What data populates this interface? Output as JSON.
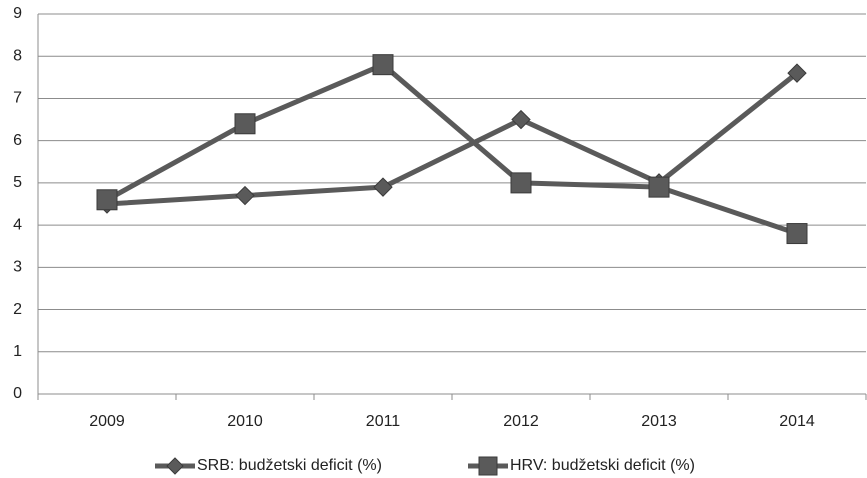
{
  "chart_data": {
    "type": "line",
    "categories": [
      "2009",
      "2010",
      "2011",
      "2012",
      "2013",
      "2014"
    ],
    "series": [
      {
        "name": "SRB: budžetski deficit (%)",
        "color": "#5a5a5a",
        "marker": "diamond",
        "values": [
          4.5,
          4.7,
          4.9,
          6.5,
          5.0,
          7.6
        ]
      },
      {
        "name": "HRV: budžetski deficit (%)",
        "color": "#5a5a5a",
        "marker": "square",
        "values": [
          4.6,
          6.4,
          7.8,
          5.0,
          4.9,
          3.8
        ]
      }
    ],
    "ylim": [
      0,
      9
    ],
    "yticks": [
      0,
      1,
      2,
      3,
      4,
      5,
      6,
      7,
      8,
      9
    ],
    "grid": true,
    "legend": "bottom"
  }
}
